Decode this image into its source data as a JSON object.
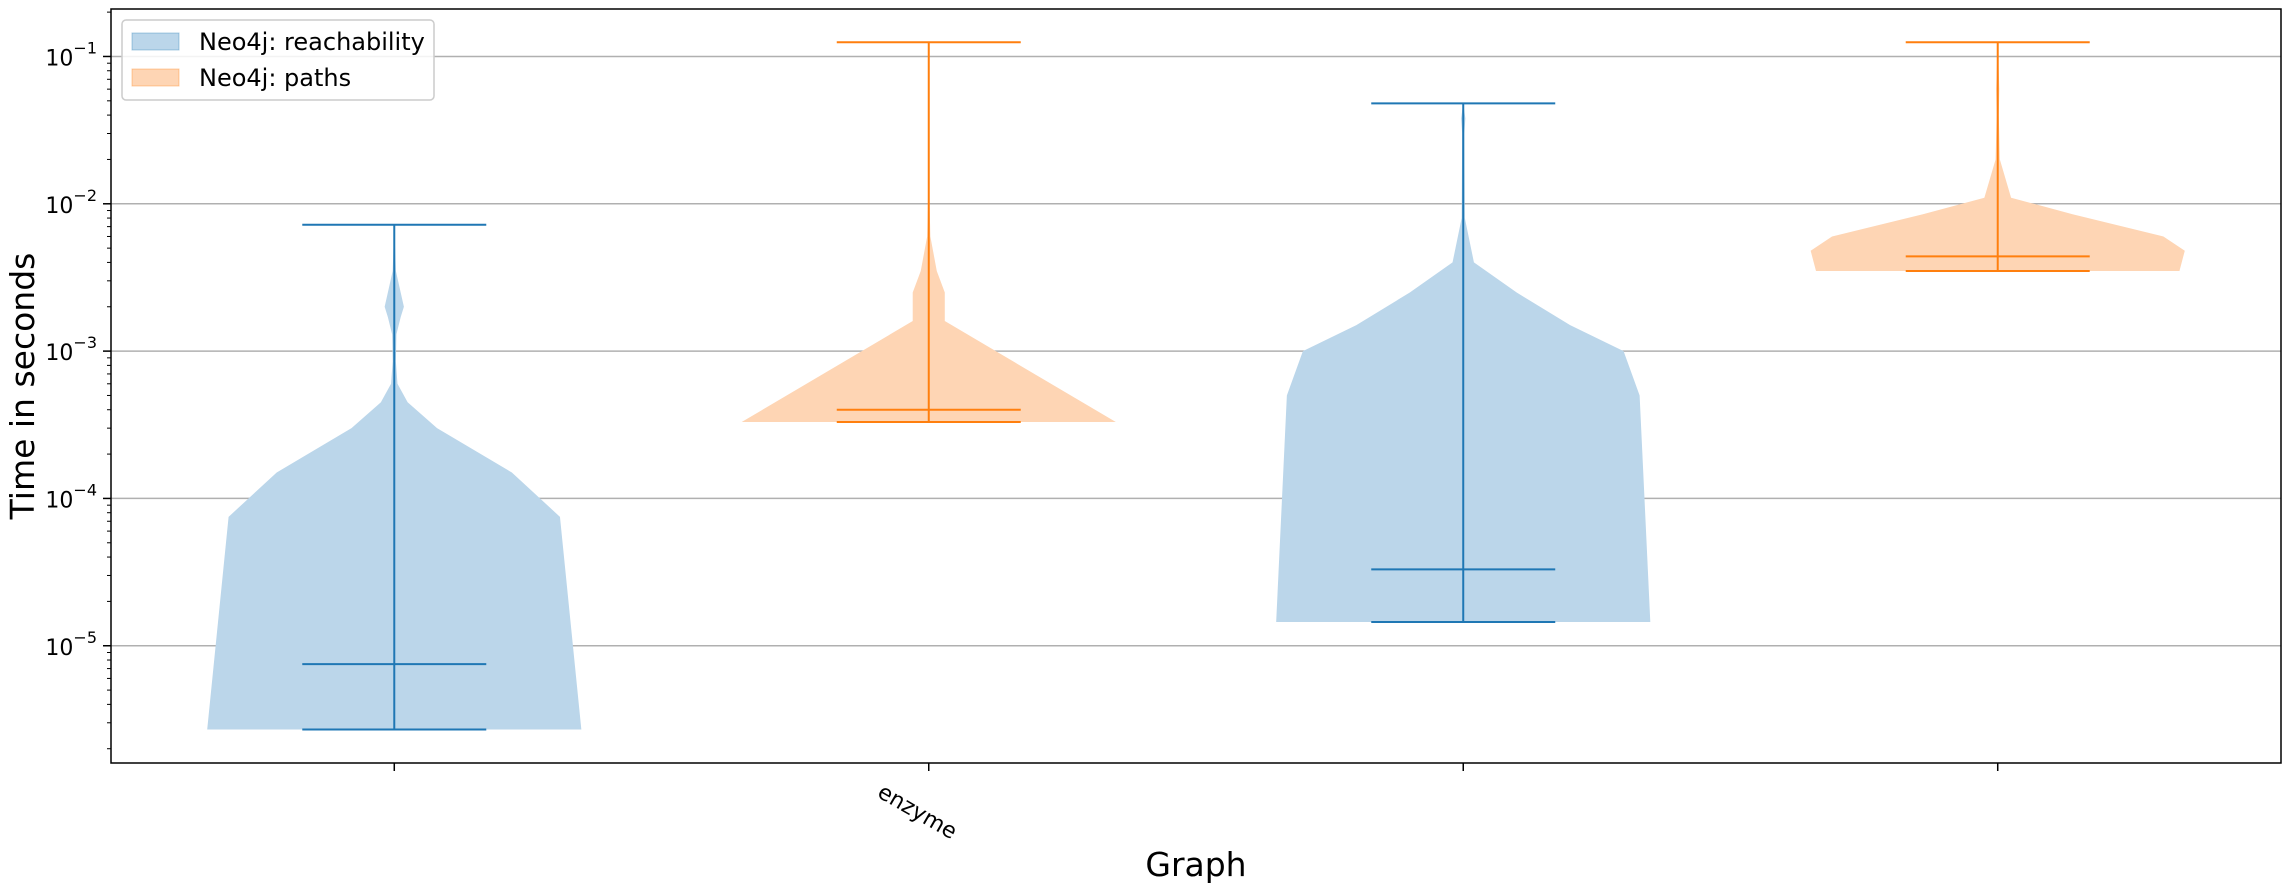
{
  "chart_data": {
    "type": "violin",
    "xlabel": "Graph",
    "ylabel": "Time in seconds",
    "yscale": "log",
    "ylim": [
      1.6e-06,
      0.21
    ],
    "yticks": [
      {
        "value": 1e-05,
        "mantissa": "10",
        "exp": "−5"
      },
      {
        "value": 0.0001,
        "mantissa": "10",
        "exp": "−4"
      },
      {
        "value": 0.001,
        "mantissa": "10",
        "exp": "−3"
      },
      {
        "value": 0.01,
        "mantissa": "10",
        "exp": "−2"
      },
      {
        "value": 0.1,
        "mantissa": "10",
        "exp": "−1"
      }
    ],
    "xticks": [
      {
        "position": 1,
        "label": ""
      },
      {
        "position": 2,
        "label": "enzyme"
      },
      {
        "position": 3,
        "label": ""
      },
      {
        "position": 4,
        "label": ""
      }
    ],
    "xlim": [
      0.47,
      4.53
    ],
    "grid": "y",
    "legend": {
      "position": "top-left",
      "entries": [
        {
          "label": "Neo4j: reachability",
          "color": "#1f77b4"
        },
        {
          "label": "Neo4j: paths",
          "color": "#ff7f0e"
        }
      ]
    },
    "colors": {
      "reachability": "#1f77b4",
      "paths": "#ff7f0e",
      "reachability_fill": "#bbd6ea",
      "paths_fill": "#fed5b4"
    },
    "violins": [
      {
        "series": "Neo4j: reachability",
        "position": 1,
        "min": 2.7e-06,
        "max": 0.0072,
        "median": 7.5e-06,
        "density": [
          [
            2.7e-06,
            0.35
          ],
          [
            7.5e-05,
            0.31
          ],
          [
            0.00015,
            0.22
          ],
          [
            0.0003,
            0.08
          ],
          [
            0.00045,
            0.025
          ],
          [
            0.0006,
            0.006
          ],
          [
            0.00085,
            0.003
          ],
          [
            0.0013,
            0.004
          ],
          [
            0.0017,
            0.012
          ],
          [
            0.002,
            0.018
          ],
          [
            0.0025,
            0.012
          ],
          [
            0.0035,
            0.003
          ],
          [
            0.0072,
            0.0
          ]
        ]
      },
      {
        "series": "Neo4j: paths",
        "position": 2,
        "min": 0.00033,
        "max": 0.125,
        "median": 0.0004,
        "density": [
          [
            0.00033,
            0.35
          ],
          [
            0.0016,
            0.03
          ],
          [
            0.0025,
            0.03
          ],
          [
            0.0035,
            0.015
          ],
          [
            0.006,
            0.003
          ],
          [
            0.01,
            0.0015
          ],
          [
            0.03,
            0.001
          ],
          [
            0.125,
            0.0
          ]
        ]
      },
      {
        "series": "Neo4j: reachability",
        "position": 3,
        "min": 1.45e-05,
        "max": 0.048,
        "median": 3.3e-05,
        "density": [
          [
            1.45e-05,
            0.35
          ],
          [
            0.0005,
            0.33
          ],
          [
            0.001,
            0.3
          ],
          [
            0.0015,
            0.2
          ],
          [
            0.0025,
            0.1
          ],
          [
            0.004,
            0.02
          ],
          [
            0.008,
            0.003
          ],
          [
            0.03,
            0.002
          ],
          [
            0.038,
            0.004
          ],
          [
            0.048,
            0.0
          ]
        ]
      },
      {
        "series": "Neo4j: paths",
        "position": 4,
        "min": 0.0035,
        "max": 0.125,
        "median": 0.0044,
        "density": [
          [
            0.0035,
            0.34
          ],
          [
            0.0048,
            0.35
          ],
          [
            0.006,
            0.31
          ],
          [
            0.0085,
            0.14
          ],
          [
            0.011,
            0.025
          ],
          [
            0.02,
            0.004
          ],
          [
            0.04,
            0.002
          ],
          [
            0.06,
            0.003
          ],
          [
            0.125,
            0.0
          ]
        ]
      }
    ]
  }
}
